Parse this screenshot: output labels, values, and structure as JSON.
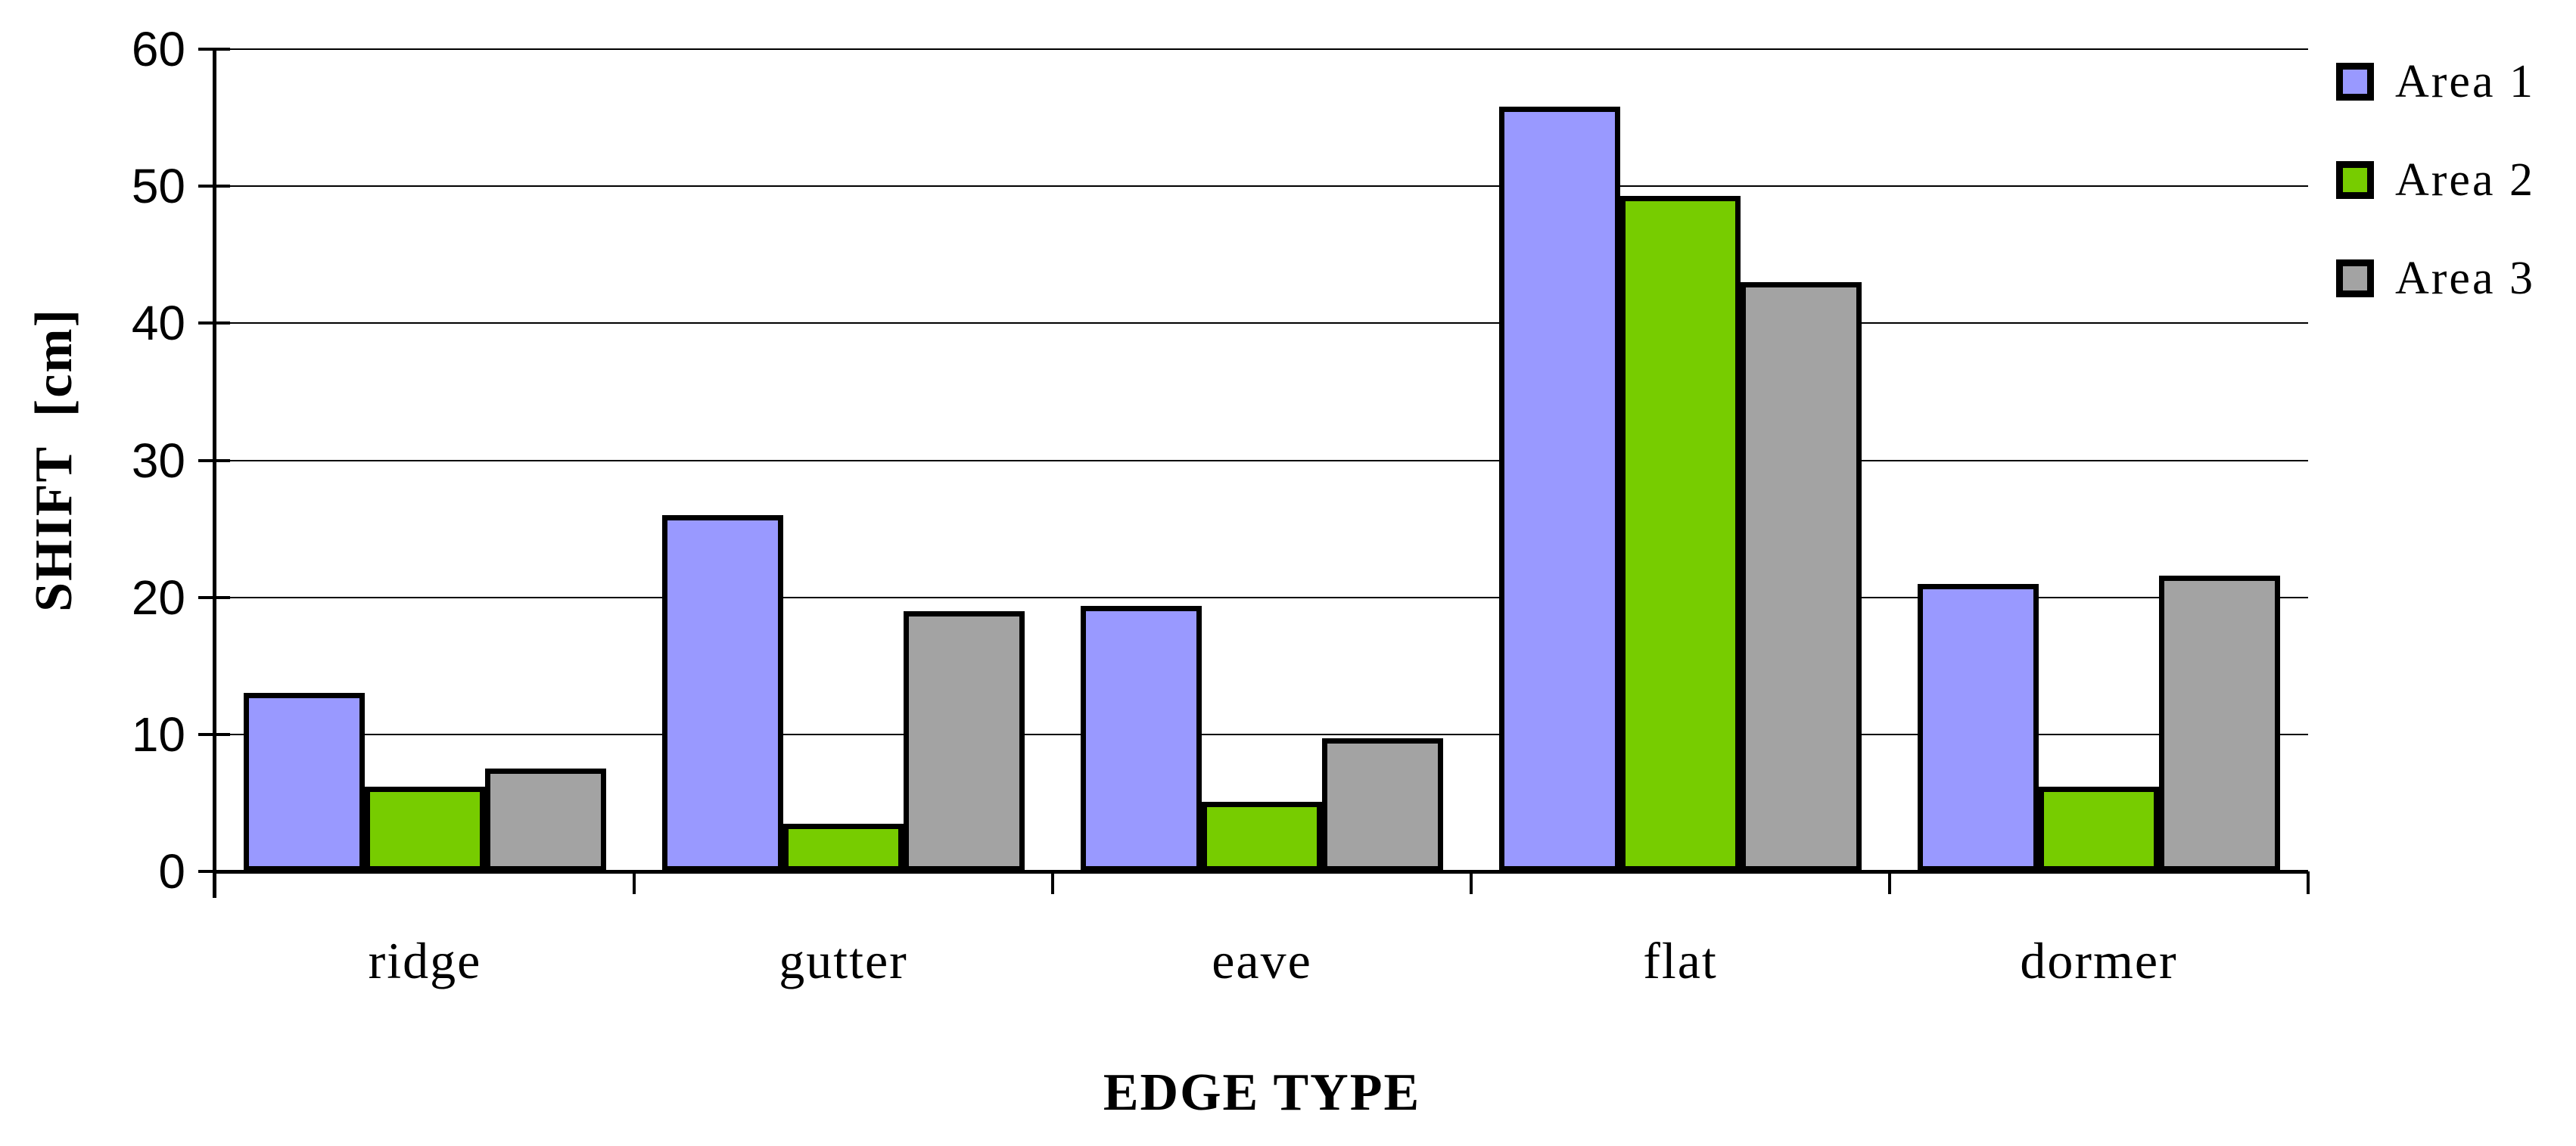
{
  "chart_data": {
    "type": "bar",
    "title": "",
    "categories": [
      "ridge",
      "gutter",
      "eave",
      "flat",
      "dormer"
    ],
    "series": [
      {
        "name": "Area 1",
        "color": "#9999FF",
        "values": [
          13,
          26,
          19.4,
          55.8,
          21
        ]
      },
      {
        "name": "Area 2",
        "color": "#77CC00",
        "values": [
          6.2,
          3.5,
          5.1,
          49.3,
          6.2
        ]
      },
      {
        "name": "Area 3",
        "color": "#A3A3A3",
        "values": [
          7.5,
          19,
          9.7,
          43,
          21.6
        ]
      }
    ],
    "xlabel": "EDGE TYPE",
    "ylabel": "SHIFT  [cm]",
    "ylim": [
      0,
      60
    ],
    "ytick_step": 10,
    "y_tick_labels": [
      "0",
      "10",
      "20",
      "30",
      "40",
      "50",
      "60"
    ],
    "grid": true,
    "legend_position": "right",
    "bar_border_color": "#000000",
    "axis_color": "#000000",
    "background_color": "#FFFFFF"
  }
}
